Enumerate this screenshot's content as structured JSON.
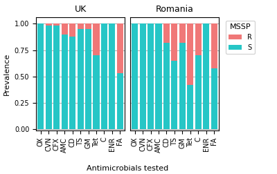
{
  "chart_data": [
    {
      "type": "bar",
      "stacked": true,
      "title": "UK",
      "ylabel": "Prevalence",
      "xlabel": "Antimicrobials tested",
      "categories": [
        "OX",
        "CVN",
        "CFX",
        "AMC",
        "CD",
        "TS",
        "GM",
        "Tet",
        "C",
        "ENR",
        "FA"
      ],
      "series": [
        {
          "name": "S",
          "color": "#26C6C6",
          "values": [
            1.0,
            0.98,
            0.98,
            0.9,
            0.88,
            0.95,
            0.95,
            0.7,
            1.0,
            1.0,
            0.53
          ]
        },
        {
          "name": "R",
          "color": "#F07878",
          "values": [
            0.0,
            0.02,
            0.02,
            0.1,
            0.12,
            0.05,
            0.05,
            0.3,
            0.0,
            0.0,
            0.47
          ]
        }
      ],
      "ylim": [
        -0.01,
        1.06
      ],
      "yticks": [
        {
          "value": 0,
          "label": "0.00"
        },
        0.25,
        {
          "value": 0.5,
          "label": "0.50"
        },
        0.75,
        {
          "value": 1,
          "label": "1.00"
        }
      ],
      "grid": true
    },
    {
      "type": "bar",
      "stacked": true,
      "title": "Romania",
      "categories": [
        "OX",
        "CVN",
        "CFX",
        "AMC",
        "CD",
        "TS",
        "GM",
        "Tet",
        "C",
        "ENR",
        "FA"
      ],
      "series": [
        {
          "name": "S",
          "color": "#26C6C6",
          "values": [
            1.0,
            1.0,
            1.0,
            1.0,
            0.82,
            0.65,
            0.82,
            0.42,
            0.7,
            1.0,
            0.58
          ]
        },
        {
          "name": "R",
          "color": "#F07878",
          "values": [
            0.0,
            0.0,
            0.0,
            0.0,
            0.18,
            0.35,
            0.18,
            0.58,
            0.3,
            0.0,
            0.42
          ]
        }
      ],
      "ylim": [
        -0.01,
        1.06
      ],
      "yticks": [
        {
          "value": 0,
          "label": "0.00"
        },
        0.25,
        {
          "value": 0.5,
          "label": "0.50"
        },
        0.75,
        {
          "value": 1,
          "label": "1.00"
        }
      ],
      "grid": true,
      "tick_labels": "x",
      "legend": "upper left",
      "legend_title": "MSSP"
    }
  ]
}
